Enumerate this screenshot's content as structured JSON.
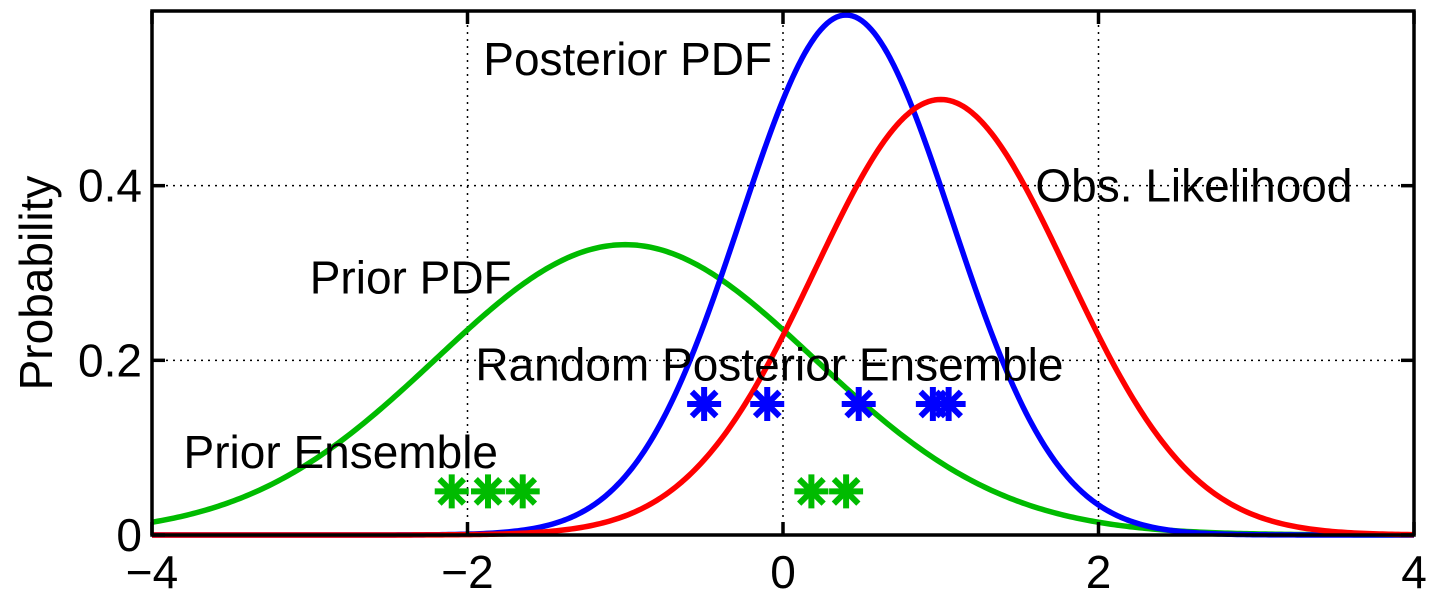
{
  "chart_data": {
    "type": "line",
    "title": "",
    "xlabel": "",
    "ylabel": "Probability",
    "xlim": [
      -4,
      4
    ],
    "ylim": [
      0,
      0.6
    ],
    "grid": true,
    "legend": "none",
    "x_ticks": [
      -4,
      -2,
      0,
      2,
      4
    ],
    "x_tick_labels": [
      "−4",
      "−2",
      "0",
      "2",
      "4"
    ],
    "y_ticks": [
      0,
      0.2,
      0.4
    ],
    "y_tick_labels": [
      "0",
      "0.2",
      "0.4"
    ],
    "series": [
      {
        "key": "prior",
        "kind": "normal_pdf",
        "mean": -1.0,
        "sd": 1.2,
        "color": "#00bb00"
      },
      {
        "key": "posterior",
        "kind": "normal_pdf",
        "mean": 0.4,
        "sd": 0.67,
        "color": "#0000ff"
      },
      {
        "key": "likelihood",
        "kind": "normal_pdf",
        "mean": 1.0,
        "sd": 0.8,
        "color": "#ff0000"
      }
    ],
    "ensembles": [
      {
        "key": "prior_ensemble",
        "color": "#00bb00",
        "y": 0.05,
        "x": [
          -2.1,
          -1.87,
          -1.65,
          0.18,
          0.4
        ]
      },
      {
        "key": "posterior_ensemble",
        "color": "#0000ff",
        "y": 0.15,
        "x": [
          -0.5,
          -0.1,
          0.48,
          0.95,
          1.05
        ]
      }
    ],
    "annotations": [
      {
        "text": "Posterior PDF",
        "x": -1.9,
        "y": 0.545
      },
      {
        "text": "Obs. Likelihood",
        "x": 1.6,
        "y": 0.4
      },
      {
        "text": "Prior PDF",
        "x": -3.0,
        "y": 0.295
      },
      {
        "text": "Random Posterior Ensemble",
        "x": -1.95,
        "y": 0.195
      },
      {
        "text": "Prior Ensemble",
        "x": -3.8,
        "y": 0.095
      }
    ]
  }
}
